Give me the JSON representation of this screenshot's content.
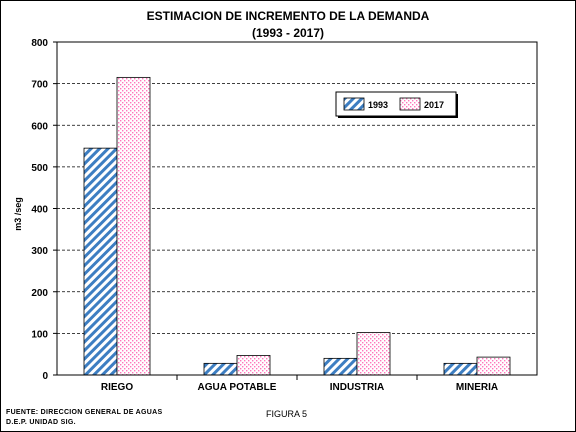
{
  "chart_data": {
    "type": "bar",
    "title": "ESTIMACION DE INCREMENTO DE LA DEMANDA",
    "subtitle": "(1993 - 2017)",
    "xlabel": "",
    "ylabel": "m3 /seg",
    "categories": [
      "RIEGO",
      "AGUA POTABLE",
      "INDUSTRIA",
      "MINERIA"
    ],
    "series": [
      {
        "name": "1993",
        "values": [
          545,
          28,
          40,
          28
        ],
        "color": "#3d7ec2",
        "pattern": "diagonal-hatch"
      },
      {
        "name": "2017",
        "values": [
          715,
          47,
          102,
          43
        ],
        "color": "#ff99cc",
        "pattern": "dotted"
      }
    ],
    "ylim": [
      0,
      800
    ],
    "yticks": [
      0,
      100,
      200,
      300,
      400,
      500,
      600,
      700,
      800
    ],
    "grid": "horizontal-dashed",
    "legend_position": "top-right"
  },
  "footer": {
    "source_line1": "FUENTE: DIRECCION GENERAL DE AGUAS",
    "source_line2": "D.E.P. UNIDAD SIG.",
    "figure_label": "FIGURA 5"
  }
}
